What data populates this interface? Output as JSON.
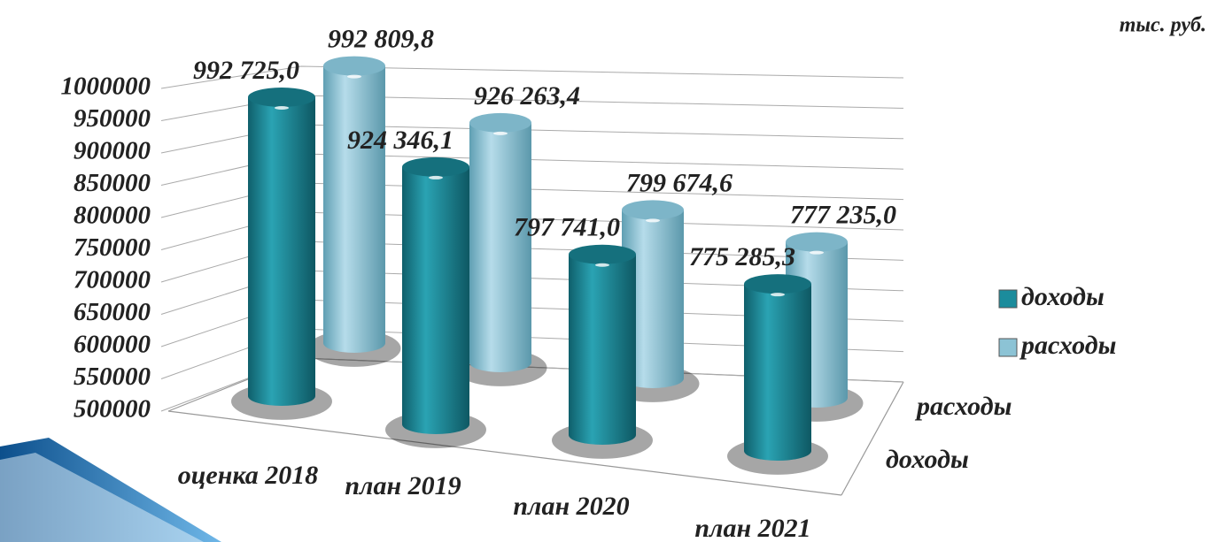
{
  "chart_data": {
    "type": "bar3d",
    "note": "тыс. руб.",
    "categories": [
      "оценка 2018",
      "план 2019",
      "план 2020",
      "план 2021"
    ],
    "series": [
      {
        "name": "доходы",
        "color": "#1b8c9c",
        "values": [
          992725.0,
          924346.1,
          797741.0,
          775285.3
        ],
        "value_labels": [
          "992 725,0",
          "924 346,1",
          "797 741,0",
          "775 285,3"
        ]
      },
      {
        "name": "расходы",
        "color": "#8cc3d5",
        "values": [
          992809.8,
          926263.4,
          799674.6,
          777235.0
        ],
        "value_labels": [
          "992 809,8",
          "926 263,4",
          "799 674,6",
          "777 235,0"
        ]
      }
    ],
    "ylim": [
      500000,
      1000000
    ],
    "yticks": [
      500000,
      550000,
      600000,
      650000,
      700000,
      750000,
      800000,
      850000,
      900000,
      950000,
      1000000
    ],
    "grid": true,
    "legend": "right"
  }
}
